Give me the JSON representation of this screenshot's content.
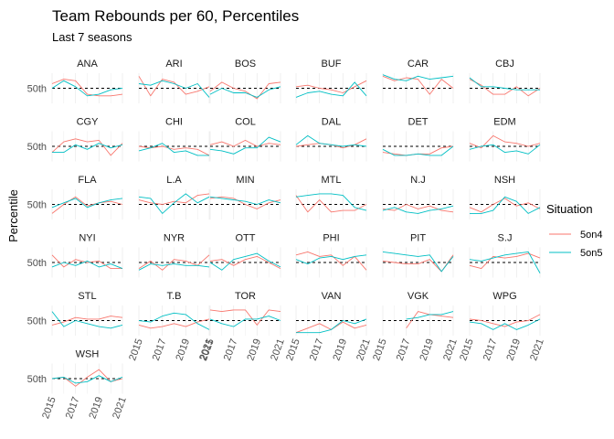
{
  "chart_data": {
    "type": "line",
    "title": "Team Rebounds per 60, Percentiles",
    "subtitle": "Last 7 seasons",
    "ylabel": "Percentile",
    "y_tick_label": "50th",
    "reference_value": 50,
    "ylim": [
      0,
      100
    ],
    "x": [
      2015,
      2016,
      2017,
      2018,
      2019,
      2020,
      2021
    ],
    "x_tick_labels": [
      "2015",
      "2017",
      "2019",
      "2021"
    ],
    "legend": {
      "title": "Situation",
      "position": "right",
      "entries": [
        {
          "name": "5on4",
          "color": "#F8766D"
        },
        {
          "name": "5on5",
          "color": "#00BFC4"
        }
      ]
    },
    "panels": [
      {
        "team": "ANA",
        "series": {
          "5on4": [
            65,
            80,
            75,
            30,
            25,
            25,
            30
          ],
          "5on5": [
            50,
            75,
            55,
            25,
            30,
            45,
            50
          ]
        }
      },
      {
        "team": "ARI",
        "series": {
          "5on4": [
            90,
            25,
            80,
            70,
            30,
            40,
            55
          ],
          "5on5": [
            65,
            60,
            75,
            65,
            50,
            65,
            20
          ]
        }
      },
      {
        "team": "BOS",
        "series": {
          "5on4": [
            40,
            70,
            50,
            40,
            15,
            65,
            70
          ],
          "5on5": [
            30,
            50,
            35,
            35,
            20,
            45,
            55
          ]
        }
      },
      {
        "team": "BUF",
        "series": {
          "5on4": [
            55,
            60,
            50,
            45,
            35,
            55,
            75
          ],
          "5on5": [
            20,
            35,
            40,
            30,
            25,
            70,
            25
          ]
        }
      },
      {
        "team": "CAR",
        "series": {
          "5on4": [
            90,
            75,
            85,
            80,
            30,
            80,
            50
          ],
          "5on5": [
            95,
            80,
            75,
            90,
            80,
            85,
            90
          ]
        }
      },
      {
        "team": "CBJ",
        "series": {
          "5on4": [
            80,
            60,
            30,
            30,
            55,
            25,
            50
          ],
          "5on5": [
            85,
            55,
            55,
            50,
            45,
            45,
            45
          ]
        }
      },
      {
        "team": "CGY",
        "series": {
          "5on4": [
            30,
            65,
            75,
            65,
            70,
            20,
            60
          ],
          "5on5": [
            30,
            30,
            55,
            40,
            60,
            45,
            55
          ]
        }
      },
      {
        "team": "CHI",
        "series": {
          "5on4": [
            50,
            45,
            50,
            40,
            45,
            40,
            20
          ],
          "5on5": [
            35,
            45,
            60,
            30,
            35,
            20,
            20
          ]
        }
      },
      {
        "team": "COL",
        "series": {
          "5on4": [
            55,
            65,
            50,
            70,
            50,
            60,
            55
          ],
          "5on5": [
            40,
            35,
            25,
            45,
            45,
            80,
            65
          ]
        }
      },
      {
        "team": "DAL",
        "series": {
          "5on4": [
            50,
            55,
            60,
            55,
            45,
            55,
            75
          ],
          "5on5": [
            55,
            85,
            60,
            55,
            50,
            55,
            50
          ]
        }
      },
      {
        "team": "DET",
        "series": {
          "5on4": [
            30,
            25,
            20,
            25,
            25,
            45,
            50
          ],
          "5on5": [
            40,
            20,
            20,
            25,
            20,
            20,
            50
          ]
        }
      },
      {
        "team": "EDM",
        "series": {
          "5on4": [
            60,
            45,
            85,
            65,
            60,
            50,
            60
          ],
          "5on5": [
            40,
            50,
            55,
            30,
            35,
            25,
            55
          ]
        }
      },
      {
        "team": "FLA",
        "series": {
          "5on4": [
            20,
            50,
            75,
            45,
            55,
            60,
            50
          ],
          "5on5": [
            40,
            55,
            70,
            40,
            55,
            65,
            70
          ]
        }
      },
      {
        "team": "L.A",
        "series": {
          "5on4": [
            65,
            55,
            50,
            60,
            55,
            80,
            85
          ],
          "5on5": [
            75,
            70,
            20,
            55,
            85,
            55,
            75
          ]
        }
      },
      {
        "team": "MIN",
        "series": {
          "5on4": [
            70,
            75,
            70,
            50,
            35,
            55,
            65
          ],
          "5on5": [
            75,
            70,
            65,
            60,
            50,
            65,
            55
          ]
        }
      },
      {
        "team": "MTL",
        "series": {
          "5on4": [
            80,
            25,
            65,
            25,
            30,
            30,
            50
          ],
          "5on5": [
            75,
            80,
            85,
            85,
            80,
            40,
            30
          ]
        }
      },
      {
        "team": "N.J",
        "series": {
          "5on4": [
            35,
            30,
            50,
            35,
            45,
            30,
            25
          ],
          "5on5": [
            30,
            40,
            25,
            20,
            30,
            35,
            45
          ]
        }
      },
      {
        "team": "NSH",
        "series": {
          "5on4": [
            40,
            25,
            50,
            70,
            45,
            55,
            35
          ],
          "5on5": [
            20,
            20,
            30,
            75,
            60,
            20,
            40
          ]
        }
      },
      {
        "team": "NYI",
        "series": {
          "5on4": [
            75,
            35,
            60,
            50,
            55,
            30,
            30
          ],
          "5on5": [
            35,
            50,
            40,
            55,
            35,
            45,
            30
          ]
        }
      },
      {
        "team": "NYR",
        "series": {
          "5on4": [
            30,
            55,
            25,
            60,
            55,
            40,
            75
          ],
          "5on5": [
            25,
            45,
            40,
            45,
            40,
            40,
            35
          ]
        }
      },
      {
        "team": "OTT",
        "series": {
          "5on4": [
            55,
            60,
            40,
            60,
            70,
            50,
            30
          ],
          "5on5": [
            50,
            25,
            60,
            70,
            80,
            55,
            35
          ]
        }
      },
      {
        "team": "PHI",
        "series": {
          "5on4": [
            75,
            85,
            70,
            75,
            40,
            70,
            25
          ],
          "5on5": [
            60,
            45,
            65,
            70,
            60,
            70,
            75
          ]
        }
      },
      {
        "team": "PIT",
        "series": {
          "5on4": [
            55,
            50,
            45,
            45,
            60,
            20,
            75
          ],
          "5on5": [
            85,
            80,
            75,
            70,
            75,
            20,
            70
          ]
        }
      },
      {
        "team": "S.J",
        "series": {
          "5on4": [
            40,
            30,
            70,
            65,
            70,
            80,
            65
          ],
          "5on5": [
            60,
            55,
            65,
            75,
            80,
            85,
            15
          ]
        }
      },
      {
        "team": "STL",
        "series": {
          "5on4": [
            35,
            45,
            60,
            55,
            55,
            65,
            60
          ],
          "5on5": [
            80,
            30,
            50,
            40,
            30,
            25,
            35
          ]
        }
      },
      {
        "team": "T.B",
        "series": {
          "5on4": [
            35,
            25,
            30,
            40,
            30,
            45,
            55
          ],
          "5on5": [
            50,
            45,
            65,
            75,
            70,
            40,
            20
          ]
        }
      },
      {
        "team": "TOR",
        "series": {
          "5on4": [
            85,
            80,
            85,
            85,
            35,
            85,
            80
          ],
          "5on5": [
            55,
            40,
            30,
            55,
            55,
            65,
            50
          ]
        }
      },
      {
        "team": "VAN",
        "series": {
          "5on4": [
            10,
            25,
            40,
            20,
            45,
            25,
            35
          ],
          "5on5": [
            10,
            10,
            10,
            20,
            50,
            40,
            55
          ]
        }
      },
      {
        "team": "VGK",
        "series": {
          "5on4": [
            null,
            null,
            25,
            80,
            70,
            65,
            60
          ],
          "5on5": [
            null,
            null,
            55,
            60,
            70,
            70,
            80
          ]
        }
      },
      {
        "team": "WPG",
        "series": {
          "5on4": [
            55,
            50,
            40,
            30,
            45,
            50,
            70
          ],
          "5on5": [
            45,
            40,
            20,
            40,
            20,
            35,
            55
          ]
        }
      },
      {
        "team": "WSH",
        "series": {
          "5on4": [
            50,
            55,
            25,
            55,
            80,
            40,
            50
          ],
          "5on5": [
            50,
            55,
            35,
            40,
            60,
            40,
            55
          ]
        }
      }
    ]
  }
}
